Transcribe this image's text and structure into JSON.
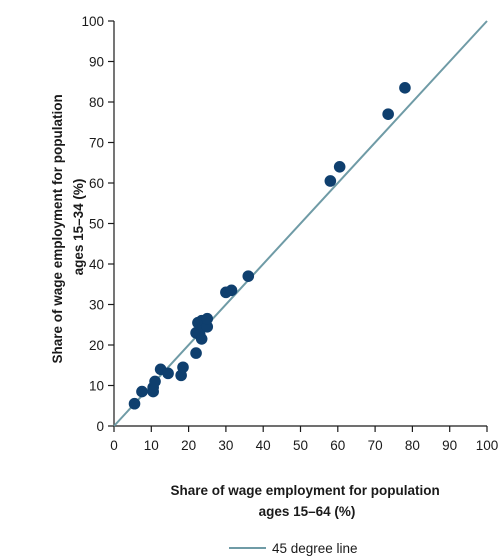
{
  "chart_data": {
    "type": "scatter",
    "xlabel_lines": [
      "Share of wage employment for population",
      "ages 15–64 (%)"
    ],
    "ylabel_lines": [
      "Share of wage employment for population",
      "ages 15–34 (%)"
    ],
    "xlim": [
      0,
      100
    ],
    "ylim": [
      0,
      100
    ],
    "xticks": [
      0,
      10,
      20,
      30,
      40,
      50,
      60,
      70,
      80,
      90,
      100
    ],
    "yticks": [
      0,
      10,
      20,
      30,
      40,
      50,
      60,
      70,
      80,
      90,
      100
    ],
    "grid": false,
    "legend_position": "bottom-center",
    "reference_line": {
      "name": "45 degree line",
      "from": [
        0,
        0
      ],
      "to": [
        100,
        100
      ]
    },
    "points": [
      {
        "x": 5.5,
        "y": 5.5
      },
      {
        "x": 7.5,
        "y": 8.5
      },
      {
        "x": 10.5,
        "y": 8.5
      },
      {
        "x": 10.5,
        "y": 9.5
      },
      {
        "x": 11,
        "y": 11
      },
      {
        "x": 12.5,
        "y": 14
      },
      {
        "x": 14.5,
        "y": 13
      },
      {
        "x": 18,
        "y": 12.5
      },
      {
        "x": 18.5,
        "y": 14.5
      },
      {
        "x": 22,
        "y": 18
      },
      {
        "x": 22,
        "y": 23
      },
      {
        "x": 22.5,
        "y": 25.5
      },
      {
        "x": 23,
        "y": 22.5
      },
      {
        "x": 23.5,
        "y": 21.5
      },
      {
        "x": 23.5,
        "y": 26
      },
      {
        "x": 24,
        "y": 24.5
      },
      {
        "x": 24.5,
        "y": 25.5
      },
      {
        "x": 25,
        "y": 24.5
      },
      {
        "x": 25,
        "y": 26.5
      },
      {
        "x": 30,
        "y": 33
      },
      {
        "x": 31.5,
        "y": 33.5
      },
      {
        "x": 36,
        "y": 37
      },
      {
        "x": 58,
        "y": 60.5
      },
      {
        "x": 60.5,
        "y": 64
      },
      {
        "x": 73.5,
        "y": 77
      },
      {
        "x": 78,
        "y": 83.5
      }
    ],
    "colors": {
      "points": "#0f3f6e",
      "reference_line": "#6f9ba6",
      "axis": "#1a1a1a"
    }
  }
}
